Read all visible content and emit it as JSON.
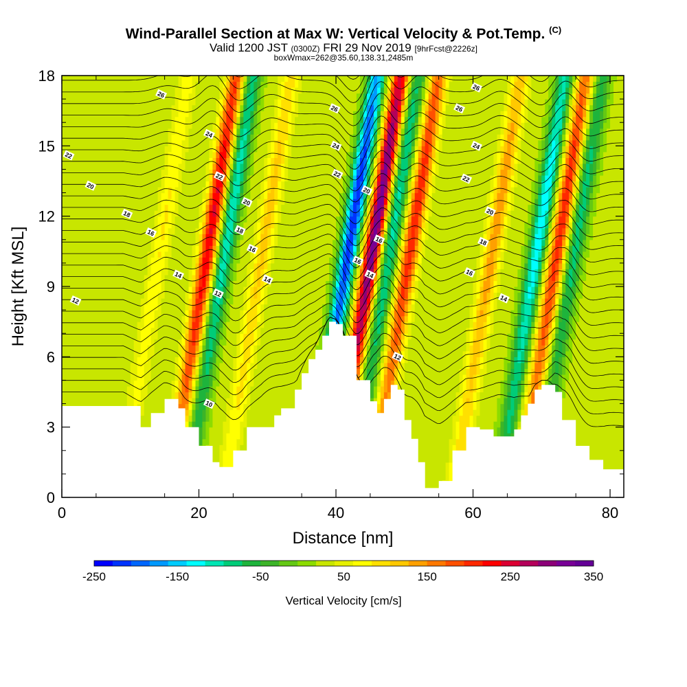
{
  "header": {
    "title_main": "Wind-Parallel Section at Max W: Vertical Velocity & Pot.Temp.",
    "title_mark": "(C)",
    "valid_prefix": "Valid 1200 JST",
    "valid_zulu": "(0300Z)",
    "valid_date": "FRI 29 Nov 2019",
    "valid_fcst": "[9hrFcst@2226z]",
    "box_info": "boxWmax=262@35.60,138.31,2485m"
  },
  "chart_data": {
    "type": "heatmap",
    "xlabel": "Distance [nm]",
    "ylabel": "Height [Kft MSL]",
    "xlim": [
      0,
      82
    ],
    "ylim": [
      0,
      18
    ],
    "x_ticks": [
      0,
      20,
      40,
      60,
      80
    ],
    "y_ticks": [
      0,
      3,
      6,
      9,
      12,
      15,
      18
    ],
    "colorbar": {
      "title": "Vertical Velocity [cm/s]",
      "tick_labels": [
        "-250",
        "-150",
        "-50",
        "50",
        "150",
        "250",
        "350"
      ],
      "min": -250,
      "max": 350,
      "colors": [
        "#0000ff",
        "#0033ff",
        "#0066ff",
        "#0099ff",
        "#00ccff",
        "#00ffff",
        "#00e6b4",
        "#00cc78",
        "#1eb43c",
        "#3cb428",
        "#64c814",
        "#8cdc00",
        "#c8e600",
        "#e6f000",
        "#ffff00",
        "#ffe000",
        "#ffc800",
        "#ffa000",
        "#ff7800",
        "#ff5000",
        "#ff2800",
        "#ff0000",
        "#dc0032",
        "#b4005a",
        "#8c0078",
        "#780096",
        "#640096"
      ]
    },
    "updrafts": [
      {
        "x": 13.5,
        "w": 60
      },
      {
        "x": 20.5,
        "w": 220
      },
      {
        "x": 28.5,
        "w": 90
      },
      {
        "x": 44.5,
        "w": 300
      },
      {
        "x": 50.0,
        "w": 190
      },
      {
        "x": 62.0,
        "w": 120
      },
      {
        "x": 71.5,
        "w": 190
      }
    ],
    "downdrafts": [
      {
        "x": 23.0,
        "w": -140
      },
      {
        "x": 41.0,
        "w": -250
      },
      {
        "x": 47.0,
        "w": -130
      },
      {
        "x": 68.5,
        "w": -160
      },
      {
        "x": 74.0,
        "w": -110
      }
    ],
    "terrain_x": [
      0,
      9,
      11.5,
      13,
      15,
      17,
      18,
      20,
      22,
      23,
      25,
      27,
      29,
      31,
      32,
      34,
      35,
      36,
      37,
      38,
      39,
      40,
      41,
      43,
      45,
      46,
      47,
      48,
      49,
      50,
      51,
      52,
      53,
      55,
      57,
      59,
      61,
      63,
      65,
      66,
      67,
      68,
      69,
      70,
      71,
      72,
      73,
      75,
      77,
      79,
      82
    ],
    "terrain_y": [
      3.9,
      3.9,
      3.0,
      3.6,
      4.2,
      3.8,
      3.0,
      2.2,
      1.5,
      1.3,
      2.0,
      3.0,
      3.0,
      3.5,
      3.8,
      4.6,
      5.3,
      5.9,
      6.3,
      6.9,
      7.5,
      7.4,
      6.9,
      5.0,
      4.1,
      3.6,
      4.2,
      4.8,
      4.6,
      3.3,
      2.5,
      1.5,
      0.4,
      0.7,
      2.0,
      3.0,
      2.9,
      2.6,
      2.6,
      2.9,
      3.5,
      4.0,
      4.6,
      4.8,
      4.8,
      4.5,
      3.3,
      2.2,
      1.6,
      1.2,
      1.0
    ],
    "contour_labels": [
      {
        "value": "26",
        "x": 14.5,
        "y": 17.2
      },
      {
        "value": "24",
        "x": 21.5,
        "y": 15.5
      },
      {
        "value": "22",
        "x": 23.0,
        "y": 13.7
      },
      {
        "value": "20",
        "x": 27.0,
        "y": 12.6
      },
      {
        "value": "18",
        "x": 26.0,
        "y": 11.4
      },
      {
        "value": "16",
        "x": 27.8,
        "y": 10.6
      },
      {
        "value": "14",
        "x": 30.0,
        "y": 9.3
      },
      {
        "value": "12",
        "x": 22.8,
        "y": 8.7
      },
      {
        "value": "14",
        "x": 17.0,
        "y": 9.5
      },
      {
        "value": "16",
        "x": 13.0,
        "y": 11.3
      },
      {
        "value": "18",
        "x": 9.5,
        "y": 12.1
      },
      {
        "value": "20",
        "x": 4.2,
        "y": 13.3
      },
      {
        "value": "22",
        "x": 1.0,
        "y": 14.6
      },
      {
        "value": "12",
        "x": 2.0,
        "y": 8.4
      },
      {
        "value": "10",
        "x": 21.5,
        "y": 4.0
      },
      {
        "value": "26",
        "x": 39.8,
        "y": 16.6
      },
      {
        "value": "24",
        "x": 40.0,
        "y": 15.0
      },
      {
        "value": "22",
        "x": 40.2,
        "y": 13.8
      },
      {
        "value": "20",
        "x": 44.5,
        "y": 13.1
      },
      {
        "value": "16",
        "x": 46.3,
        "y": 11.0
      },
      {
        "value": "16",
        "x": 43.2,
        "y": 10.1
      },
      {
        "value": "14",
        "x": 45.0,
        "y": 9.5
      },
      {
        "value": "12",
        "x": 49.0,
        "y": 6.0
      },
      {
        "value": "26",
        "x": 60.5,
        "y": 17.5
      },
      {
        "value": "26",
        "x": 58.0,
        "y": 16.6
      },
      {
        "value": "24",
        "x": 60.5,
        "y": 15.0
      },
      {
        "value": "22",
        "x": 59.0,
        "y": 13.6
      },
      {
        "value": "20",
        "x": 62.5,
        "y": 12.2
      },
      {
        "value": "18",
        "x": 61.5,
        "y": 10.9
      },
      {
        "value": "16",
        "x": 59.5,
        "y": 9.6
      },
      {
        "value": "14",
        "x": 64.5,
        "y": 8.5
      }
    ]
  }
}
